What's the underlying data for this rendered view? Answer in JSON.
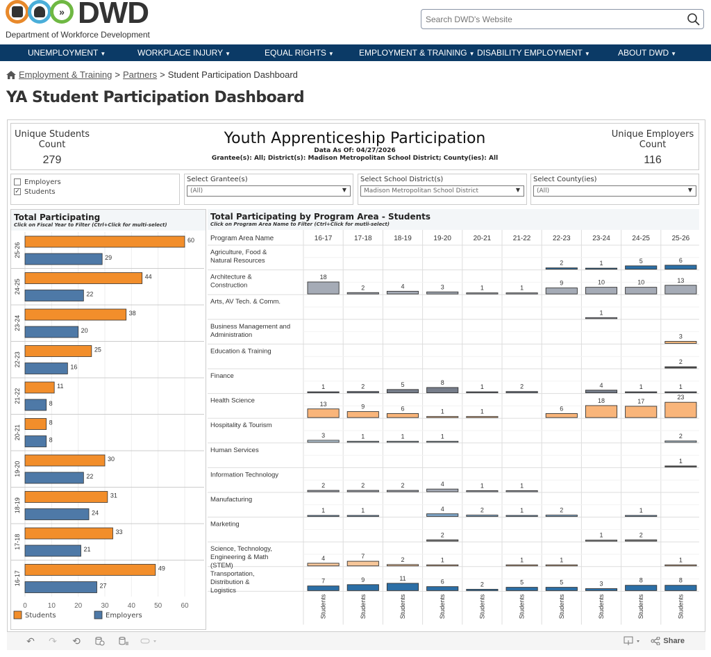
{
  "header": {
    "logo_text": "DWD",
    "logo_subtitle": "Department of Workforce Development",
    "logo_colors": [
      "#e8892b",
      "#4aaed9",
      "#6fb843"
    ],
    "search_placeholder": "Search DWD's Website"
  },
  "nav": {
    "items": [
      {
        "label": "UNEMPLOYMENT"
      },
      {
        "label": "WORKPLACE INJURY"
      },
      {
        "label": "EQUAL RIGHTS"
      },
      {
        "label": "EMPLOYMENT & TRAINING"
      },
      {
        "label": "DISABILITY EMPLOYMENT"
      },
      {
        "label": "ABOUT DWD"
      }
    ],
    "caret": "▼",
    "bg_color": "#0b3a66"
  },
  "breadcrumb": {
    "items": [
      "Employment & Training",
      "Partners"
    ],
    "current": "Student Participation Dashboard",
    "separator": ">"
  },
  "page_title": "YA Student Participation Dashboard",
  "dashboard": {
    "kpi_students": {
      "label_line1": "Unique Students",
      "label_line2": "Count",
      "value": "279"
    },
    "kpi_employers": {
      "label_line1": "Unique Employers",
      "label_line2": "Count",
      "value": "116"
    },
    "title": "Youth Apprenticeship Participation",
    "data_as_of": "Data As Of: 04/27/2026",
    "filter_summary": "Grantee(s):  All; District(s):  Madison Metropolitan School District; County(ies): All",
    "toggle": {
      "options": [
        {
          "label": "Employers",
          "checked": false
        },
        {
          "label": "Students",
          "checked": true
        }
      ]
    },
    "filters": [
      {
        "label": "Select Grantee(s)",
        "value": "(All)"
      },
      {
        "label": "Select School District(s)",
        "value": "Madison Metropolitan School District"
      },
      {
        "label": "Select County(ies)",
        "value": "(All)"
      }
    ]
  },
  "left_chart": {
    "title": "Total  Participating",
    "subtitle": "Click on Fiscal Year to Filter (Ctrl+Click for multi-select)"
  },
  "right_chart": {
    "title": "Total Participating by Program Area - Students",
    "subtitle": "Click on Program Area Name to Filter  (Ctrl+Click for mutli-select)",
    "row_header": "Program Area Name",
    "footer_label": "Students"
  },
  "chart_data": [
    {
      "type": "bar",
      "orientation": "horizontal",
      "title": "Total  Participating",
      "categories": [
        "25-26",
        "24-25",
        "23-24",
        "22-23",
        "21-22",
        "20-21",
        "19-20",
        "18-19",
        "17-18",
        "16-17"
      ],
      "series": [
        {
          "name": "Students",
          "color": "#f28e2b",
          "values": [
            60,
            44,
            38,
            25,
            11,
            8,
            30,
            31,
            33,
            49
          ]
        },
        {
          "name": "Employers",
          "color": "#4e79a7",
          "values": [
            29,
            22,
            20,
            16,
            8,
            8,
            22,
            24,
            21,
            27
          ]
        }
      ],
      "xlim": [
        0,
        65
      ],
      "xticks": [
        0,
        10,
        20,
        30,
        40,
        50,
        60
      ],
      "legend": "bottom",
      "grid": true
    },
    {
      "type": "table",
      "title": "Total Participating by Program Area - Students",
      "columns": [
        "16-17",
        "17-18",
        "18-19",
        "19-20",
        "20-21",
        "21-22",
        "22-23",
        "23-24",
        "24-25",
        "25-26"
      ],
      "rows": [
        {
          "name": "Agriculture, Food & Natural Resources",
          "color": "#2c6fa6",
          "values": [
            null,
            null,
            null,
            null,
            null,
            null,
            2,
            1,
            5,
            6
          ]
        },
        {
          "name": "Architecture & Construction",
          "color": "#a5abb6",
          "values": [
            18,
            2,
            4,
            3,
            1,
            1,
            9,
            10,
            10,
            13
          ]
        },
        {
          "name": "Arts, AV Tech. & Comm.",
          "color": "#a5abb6",
          "values": [
            null,
            null,
            null,
            null,
            null,
            null,
            null,
            1,
            null,
            null
          ]
        },
        {
          "name": "Business Management and Administration",
          "color": "#f4b87e",
          "values": [
            null,
            null,
            null,
            null,
            null,
            null,
            null,
            null,
            null,
            3
          ]
        },
        {
          "name": "Education & Training",
          "color": "#555555",
          "values": [
            null,
            null,
            null,
            null,
            null,
            null,
            null,
            null,
            null,
            2
          ]
        },
        {
          "name": "Finance",
          "color": "#767d8a",
          "values": [
            1,
            2,
            5,
            8,
            1,
            2,
            null,
            4,
            1,
            1
          ]
        },
        {
          "name": "Health Science",
          "color": "#f9b57a",
          "values": [
            13,
            9,
            6,
            1,
            1,
            null,
            6,
            18,
            17,
            23
          ]
        },
        {
          "name": "Hospitality & Tourism",
          "color": "#b8cbd9",
          "values": [
            3,
            1,
            1,
            1,
            null,
            null,
            null,
            null,
            null,
            2
          ]
        },
        {
          "name": "Human Services",
          "color": "#555555",
          "values": [
            null,
            null,
            null,
            null,
            null,
            null,
            null,
            null,
            null,
            1
          ]
        },
        {
          "name": "Information Technology",
          "color": "#a5abb6",
          "values": [
            2,
            2,
            2,
            4,
            1,
            1,
            null,
            null,
            null,
            null
          ]
        },
        {
          "name": "Manufacturing",
          "color": "#7fa6c9",
          "values": [
            1,
            1,
            null,
            4,
            2,
            1,
            2,
            null,
            1,
            null
          ]
        },
        {
          "name": "Marketing",
          "color": "#888888",
          "values": [
            null,
            null,
            null,
            2,
            null,
            null,
            null,
            1,
            2,
            null
          ]
        },
        {
          "name": "Science, Technology, Engineering & Math (STEM)",
          "color": "#f7c79a",
          "values": [
            4,
            7,
            2,
            1,
            null,
            1,
            1,
            null,
            null,
            1
          ]
        },
        {
          "name": "Transportation, Distribution & Logistics",
          "color": "#2c6fa6",
          "values": [
            7,
            9,
            11,
            6,
            2,
            5,
            5,
            3,
            8,
            8
          ]
        }
      ]
    }
  ],
  "toolbar": {
    "undo_icon": "↶",
    "redo_icon": "↷",
    "revert_icon": "⟲",
    "share_label": "Share"
  }
}
